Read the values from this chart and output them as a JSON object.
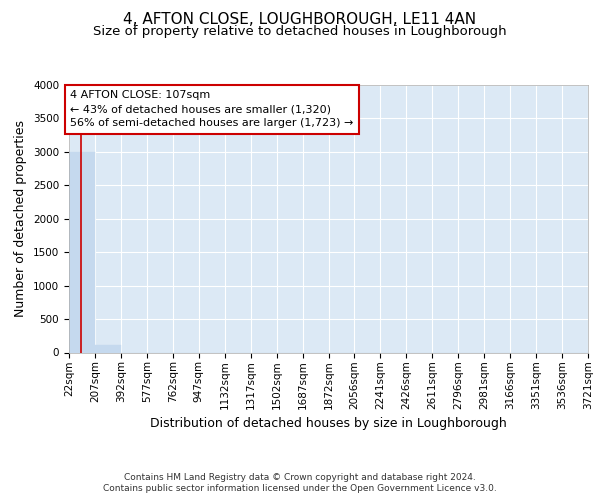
{
  "title": "4, AFTON CLOSE, LOUGHBOROUGH, LE11 4AN",
  "subtitle": "Size of property relative to detached houses in Loughborough",
  "xlabel": "Distribution of detached houses by size in Loughborough",
  "ylabel": "Number of detached properties",
  "footnote1": "Contains HM Land Registry data © Crown copyright and database right 2024.",
  "footnote2": "Contains public sector information licensed under the Open Government Licence v3.0.",
  "bar_edges": [
    22,
    207,
    392,
    577,
    762,
    947,
    1132,
    1317,
    1502,
    1687,
    1872,
    2056,
    2241,
    2426,
    2611,
    2796,
    2981,
    3166,
    3351,
    3536,
    3721
  ],
  "bar_heights": [
    3000,
    110,
    0,
    0,
    0,
    0,
    0,
    0,
    0,
    0,
    0,
    0,
    0,
    0,
    0,
    0,
    0,
    0,
    0,
    0
  ],
  "bar_color": "#c5d9ee",
  "bar_edgecolor": "#c5d9ee",
  "property_size": 107,
  "marker_line_color": "#cc0000",
  "annotation_line1": "4 AFTON CLOSE: 107sqm",
  "annotation_line2": "← 43% of detached houses are smaller (1,320)",
  "annotation_line3": "56% of semi-detached houses are larger (1,723) →",
  "annotation_box_color": "#ffffff",
  "annotation_box_edgecolor": "#cc0000",
  "ylim": [
    0,
    4000
  ],
  "yticks": [
    0,
    500,
    1000,
    1500,
    2000,
    2500,
    3000,
    3500,
    4000
  ],
  "plot_bg_color": "#dce9f5",
  "grid_color": "#ffffff",
  "title_fontsize": 11,
  "subtitle_fontsize": 9.5,
  "ylabel_fontsize": 9,
  "xlabel_fontsize": 9,
  "tick_fontsize": 7.5,
  "footnote_fontsize": 6.5
}
